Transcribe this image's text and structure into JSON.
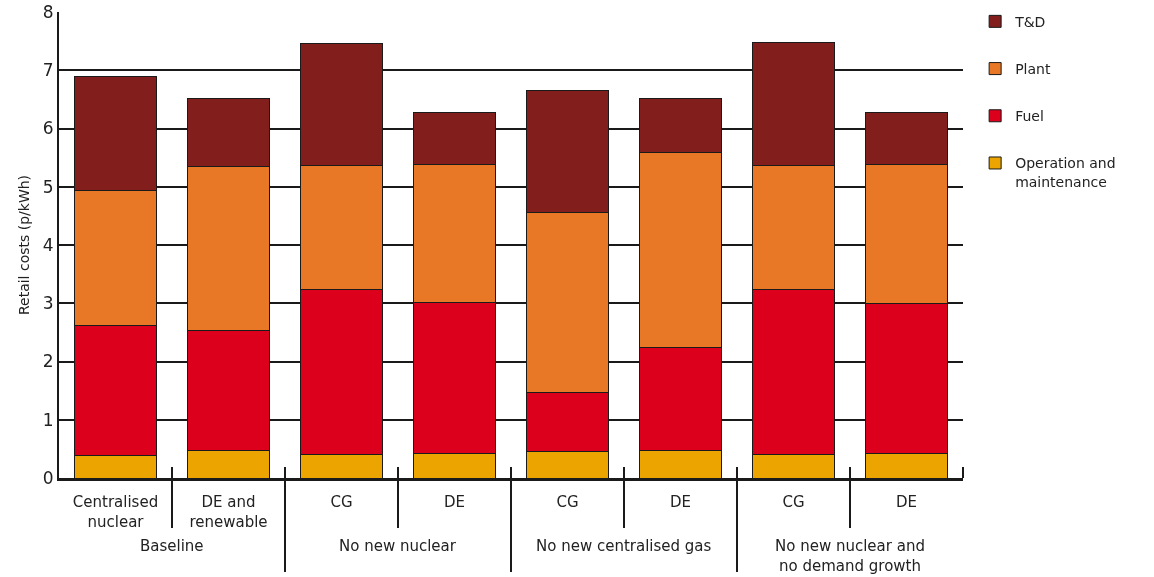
{
  "chart_data": {
    "type": "bar",
    "stacked": true,
    "ylabel": "Retail costs (p/kWh)",
    "categories": [
      "Centralised nuclear",
      "DE and renewable",
      "CG",
      "DE",
      "CG",
      "DE",
      "CG",
      "DE"
    ],
    "series": [
      {
        "name": "Operation and maintenance",
        "color": "#eba400",
        "values": [
          0.39,
          0.47,
          0.41,
          0.42,
          0.45,
          0.47,
          0.41,
          0.42
        ]
      },
      {
        "name": "Fuel",
        "color": "#dd001c",
        "values": [
          2.23,
          2.06,
          2.82,
          2.59,
          1.02,
          1.77,
          2.82,
          2.58
        ]
      },
      {
        "name": "Plant",
        "color": "#e97826",
        "values": [
          2.31,
          2.82,
          2.13,
          2.37,
          3.09,
          3.34,
          2.13,
          2.38
        ]
      },
      {
        "name": "T&D",
        "color": "#821f1c",
        "values": [
          1.96,
          1.16,
          2.1,
          0.9,
          2.1,
          0.94,
          2.11,
          0.9
        ]
      }
    ],
    "ylim": [
      0,
      8
    ],
    "yticks": [
      0,
      1,
      2,
      3,
      4,
      5,
      6,
      7,
      8
    ],
    "grid": "y",
    "legend": "top right",
    "annotations": [
      "Baseline",
      "No new nuclear",
      "No new centralised gas",
      "No new nuclear and no demand growth"
    ]
  }
}
